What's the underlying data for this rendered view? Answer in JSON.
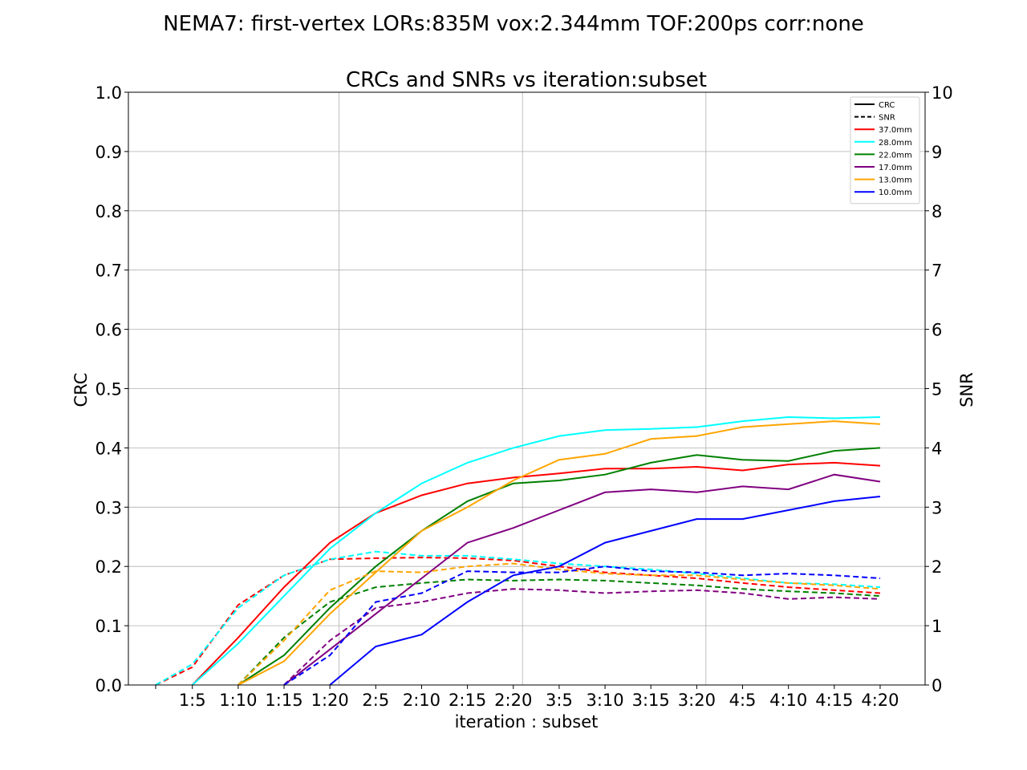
{
  "suptitle": "NEMA7: first-vertex LORs:835M vox:2.344mm TOF:200ps corr:none",
  "chart_data": {
    "type": "line",
    "title": "CRCs and SNRs vs iteration:subset",
    "xlabel": "iteration : subset",
    "ylabel": "CRC",
    "ylabel_right": "SNR",
    "ylim": [
      0,
      1.0
    ],
    "ylim_right": [
      0,
      10
    ],
    "yticks": [
      "0.0",
      "0.1",
      "0.2",
      "0.3",
      "0.4",
      "0.5",
      "0.6",
      "0.7",
      "0.8",
      "0.9",
      "1.0"
    ],
    "yticks_right": [
      "0",
      "1",
      "2",
      "3",
      "4",
      "5",
      "6",
      "7",
      "8",
      "9",
      "10"
    ],
    "xticks": [
      "1:5",
      "1:10",
      "1:15",
      "1:20",
      "2:5",
      "2:10",
      "2:15",
      "2:20",
      "3:5",
      "3:10",
      "3:15",
      "3:20",
      "4:5",
      "4:10",
      "4:15",
      "4:20"
    ],
    "grid": true,
    "legend_position": "top-right",
    "legend_style": [
      {
        "label": "CRC",
        "color": "#000000",
        "dash": false
      },
      {
        "label": "SNR",
        "color": "#000000",
        "dash": true
      }
    ],
    "x_index": [
      1,
      5,
      10,
      15,
      20,
      25,
      30,
      35,
      40,
      45,
      50,
      55,
      60,
      65,
      70,
      75,
      80
    ],
    "series": [
      {
        "name": "37.0mm",
        "color": "#ff0000",
        "crc": [
          0.0,
          0.0,
          0.08,
          0.165,
          0.24,
          0.29,
          0.32,
          0.34,
          0.35,
          0.357,
          0.365,
          0.365,
          0.368,
          0.362,
          0.372,
          0.375,
          0.37
        ],
        "snr": [
          0.0,
          0.3,
          1.35,
          1.85,
          2.12,
          2.14,
          2.15,
          2.14,
          2.1,
          2.0,
          1.9,
          1.85,
          1.8,
          1.72,
          1.65,
          1.6,
          1.55
        ]
      },
      {
        "name": "28.0mm",
        "color": "#00ffff",
        "crc": [
          0.0,
          0.0,
          0.07,
          0.15,
          0.23,
          0.29,
          0.34,
          0.375,
          0.4,
          0.42,
          0.43,
          0.432,
          0.435,
          0.445,
          0.452,
          0.45,
          0.452
        ],
        "snr": [
          0.0,
          0.35,
          1.3,
          1.85,
          2.12,
          2.25,
          2.18,
          2.18,
          2.12,
          2.05,
          2.0,
          1.95,
          1.88,
          1.8,
          1.72,
          1.7,
          1.65
        ]
      },
      {
        "name": "22.0mm",
        "color": "#008000",
        "crc": [
          0.0,
          0.0,
          0.0,
          0.05,
          0.13,
          0.2,
          0.26,
          0.31,
          0.34,
          0.345,
          0.355,
          0.375,
          0.388,
          0.38,
          0.378,
          0.395,
          0.4
        ],
        "snr": [
          0.0,
          0.0,
          0.0,
          0.8,
          1.4,
          1.65,
          1.72,
          1.78,
          1.76,
          1.78,
          1.76,
          1.72,
          1.68,
          1.62,
          1.58,
          1.55,
          1.5
        ]
      },
      {
        "name": "17.0mm",
        "color": "#800080",
        "crc": [
          0.0,
          0.0,
          0.0,
          0.0,
          0.06,
          0.12,
          0.18,
          0.24,
          0.265,
          0.295,
          0.325,
          0.33,
          0.325,
          0.335,
          0.33,
          0.355,
          0.343
        ],
        "snr": [
          0.0,
          0.0,
          0.0,
          0.0,
          0.75,
          1.3,
          1.4,
          1.55,
          1.62,
          1.6,
          1.55,
          1.58,
          1.6,
          1.55,
          1.45,
          1.48,
          1.45
        ]
      },
      {
        "name": "13.0mm",
        "color": "#ffa500",
        "crc": [
          0.0,
          0.0,
          0.0,
          0.04,
          0.12,
          0.19,
          0.26,
          0.3,
          0.345,
          0.38,
          0.39,
          0.415,
          0.42,
          0.435,
          0.44,
          0.445,
          0.44
        ],
        "snr": [
          0.0,
          0.0,
          0.0,
          0.75,
          1.6,
          1.92,
          1.9,
          2.0,
          2.05,
          1.95,
          1.88,
          1.85,
          1.85,
          1.78,
          1.72,
          1.68,
          1.62
        ]
      },
      {
        "name": "10.0mm",
        "color": "#0000ff",
        "crc": [
          0.0,
          0.0,
          0.0,
          0.0,
          0.0,
          0.065,
          0.085,
          0.14,
          0.185,
          0.2,
          0.24,
          0.26,
          0.28,
          0.28,
          0.295,
          0.31,
          0.318
        ],
        "snr": [
          0.0,
          0.0,
          0.0,
          0.0,
          0.5,
          1.4,
          1.55,
          1.92,
          1.9,
          1.9,
          2.0,
          1.92,
          1.9,
          1.85,
          1.88,
          1.85,
          1.8
        ]
      }
    ]
  }
}
